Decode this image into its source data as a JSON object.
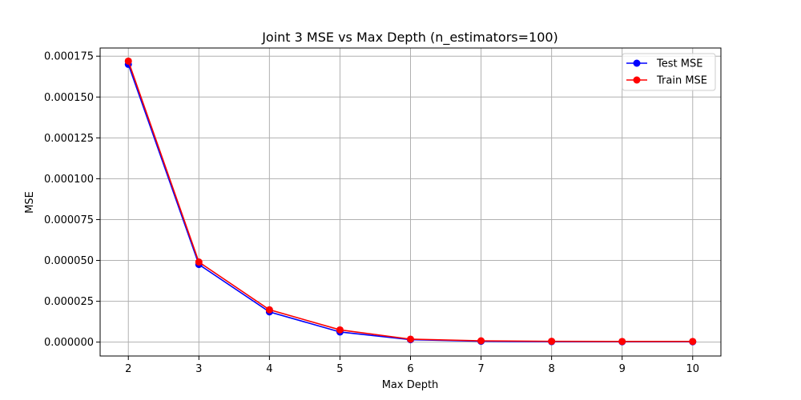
{
  "chart_data": {
    "type": "line",
    "title": "Joint 3 MSE vs Max Depth (n_estimators=100)",
    "xlabel": "Max Depth",
    "ylabel": "MSE",
    "x": [
      2,
      3,
      4,
      5,
      6,
      7,
      8,
      9,
      10
    ],
    "xlim": [
      1.6,
      10.4
    ],
    "ylim": [
      -8.5e-06,
      0.00018
    ],
    "x_ticks": [
      2,
      3,
      4,
      5,
      6,
      7,
      8,
      9,
      10
    ],
    "x_tick_labels": [
      "2",
      "3",
      "4",
      "5",
      "6",
      "7",
      "8",
      "9",
      "10"
    ],
    "y_ticks": [
      0,
      2.5e-05,
      5e-05,
      7.5e-05,
      0.0001,
      0.000125,
      0.00015,
      0.000175
    ],
    "y_tick_labels": [
      "0.000000",
      "0.000025",
      "0.000050",
      "0.000075",
      "0.000100",
      "0.000125",
      "0.000150",
      "0.000175"
    ],
    "grid": true,
    "legend_position": "top-right",
    "series": [
      {
        "name": "Test MSE",
        "color": "#0000ff",
        "marker": "circle",
        "values": [
          0.00017,
          4.75e-05,
          1.85e-05,
          6.2e-06,
          1.5e-06,
          5e-07,
          3e-07,
          2e-07,
          2e-07
        ]
      },
      {
        "name": "Train MSE",
        "color": "#ff0000",
        "marker": "circle",
        "values": [
          0.000172,
          4.9e-05,
          1.98e-05,
          7.5e-06,
          1.8e-06,
          8e-07,
          5e-07,
          4e-07,
          4e-07
        ]
      }
    ]
  }
}
